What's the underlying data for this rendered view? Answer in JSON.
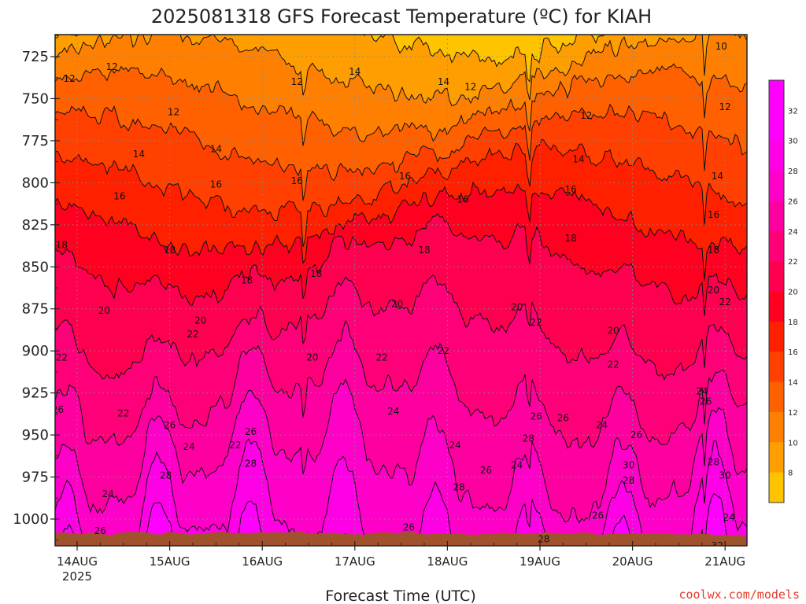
{
  "header": {
    "title": "2025081318 GFS Forecast Temperature (ºC) for KIAH"
  },
  "footer": {
    "xlabel": "Forecast Time (UTC)",
    "credit": "coolwx.com/models",
    "year": "2025"
  },
  "colors": {
    "surface": "#a0522d",
    "credit": "#e8392a",
    "contour_line": "#111111",
    "grid": "#888888"
  },
  "chart_data": {
    "type": "heatmap",
    "title": "2025081318 GFS Forecast Temperature (ºC) for KIAH",
    "xlabel": "Forecast Time (UTC)",
    "ylabel": "",
    "x_ticks": [
      "14AUG",
      "15AUG",
      "16AUG",
      "17AUG",
      "18AUG",
      "19AUG",
      "20AUG",
      "21AUG"
    ],
    "y_ticks": [
      725,
      750,
      775,
      800,
      825,
      850,
      875,
      900,
      925,
      950,
      975,
      1000
    ],
    "y_axis": "pressure (hPa), inverted",
    "grid": true,
    "colorbar": {
      "ticks": [
        8,
        10,
        12,
        14,
        16,
        18,
        20,
        22,
        24,
        26,
        28,
        30,
        32
      ],
      "colors": [
        "#ffc400",
        "#ff9e00",
        "#ff8000",
        "#ff6000",
        "#ff4000",
        "#ff2000",
        "#ff0020",
        "#ff0050",
        "#ff0078",
        "#ff00a0",
        "#ff00c8",
        "#ff00e6",
        "#ff00ff"
      ]
    },
    "contour_labels": [
      {
        "t": "13AUG 22Z",
        "p": 738,
        "v": 12
      },
      {
        "t": "14AUG 09Z",
        "p": 731,
        "v": 12
      },
      {
        "t": "15AUG 01Z",
        "p": 758,
        "v": 12
      },
      {
        "t": "16AUG 09Z",
        "p": 740,
        "v": 12
      },
      {
        "t": "18AUG 06Z",
        "p": 743,
        "v": 12
      },
      {
        "t": "19AUG 12Z",
        "p": 760,
        "v": 12
      },
      {
        "t": "20AUG 23Z",
        "p": 719,
        "v": 10
      },
      {
        "t": "21AUG 00Z",
        "p": 755,
        "v": 12
      },
      {
        "t": "14AUG 16Z",
        "p": 783,
        "v": 14
      },
      {
        "t": "15AUG 12Z",
        "p": 780,
        "v": 14
      },
      {
        "t": "17AUG 00Z",
        "p": 734,
        "v": 14
      },
      {
        "t": "17AUG 23Z",
        "p": 740,
        "v": 14
      },
      {
        "t": "19AUG 10Z",
        "p": 786,
        "v": 14
      },
      {
        "t": "20AUG 22Z",
        "p": 796,
        "v": 14
      },
      {
        "t": "14AUG 11Z",
        "p": 808,
        "v": 16
      },
      {
        "t": "15AUG 12Z",
        "p": 801,
        "v": 16
      },
      {
        "t": "16AUG 09Z",
        "p": 799,
        "v": 16
      },
      {
        "t": "17AUG 13Z",
        "p": 796,
        "v": 16
      },
      {
        "t": "18AUG 04Z",
        "p": 810,
        "v": 16
      },
      {
        "t": "19AUG 08Z",
        "p": 804,
        "v": 16
      },
      {
        "t": "20AUG 21Z",
        "p": 819,
        "v": 16
      },
      {
        "t": "13AUG 20Z",
        "p": 837,
        "v": 18
      },
      {
        "t": "15AUG 00Z",
        "p": 840,
        "v": 18
      },
      {
        "t": "15AUG 20Z",
        "p": 858,
        "v": 18
      },
      {
        "t": "16AUG 14Z",
        "p": 854,
        "v": 18
      },
      {
        "t": "17AUG 18Z",
        "p": 840,
        "v": 18
      },
      {
        "t": "19AUG 08Z",
        "p": 833,
        "v": 18
      },
      {
        "t": "20AUG 21Z",
        "p": 840,
        "v": 18
      },
      {
        "t": "14AUG 07Z",
        "p": 876,
        "v": 20
      },
      {
        "t": "15AUG 08Z",
        "p": 882,
        "v": 20
      },
      {
        "t": "16AUG 13Z",
        "p": 904,
        "v": 20
      },
      {
        "t": "17AUG 11Z",
        "p": 872,
        "v": 20
      },
      {
        "t": "18AUG 18Z",
        "p": 874,
        "v": 20
      },
      {
        "t": "19AUG 19Z",
        "p": 888,
        "v": 20
      },
      {
        "t": "20AUG 21Z",
        "p": 864,
        "v": 20
      },
      {
        "t": "13AUG 20Z",
        "p": 904,
        "v": 22
      },
      {
        "t": "15AUG 06Z",
        "p": 890,
        "v": 22
      },
      {
        "t": "17AUG 07Z",
        "p": 904,
        "v": 22
      },
      {
        "t": "17AUG 23Z",
        "p": 900,
        "v": 22
      },
      {
        "t": "18AUG 23Z",
        "p": 883,
        "v": 22
      },
      {
        "t": "19AUG 19Z",
        "p": 908,
        "v": 22
      },
      {
        "t": "21AUG 00Z",
        "p": 871,
        "v": 22
      },
      {
        "t": "14AUG 12Z",
        "p": 937,
        "v": 22
      },
      {
        "t": "15AUG 17Z",
        "p": 956,
        "v": 22
      },
      {
        "t": "13AUG 19Z",
        "p": 935,
        "v": 26
      },
      {
        "t": "15AUG 00Z",
        "p": 944,
        "v": 26
      },
      {
        "t": "15AUG 05Z",
        "p": 957,
        "v": 24
      },
      {
        "t": "14AUG 08Z",
        "p": 985,
        "v": 24
      },
      {
        "t": "15AUG 21Z",
        "p": 948,
        "v": 26
      },
      {
        "t": "15AUG 21Z",
        "p": 967,
        "v": 28
      },
      {
        "t": "14AUG 23Z",
        "p": 974,
        "v": 28
      },
      {
        "t": "14AUG 06Z",
        "p": 1007,
        "v": 26
      },
      {
        "t": "17AUG 10Z",
        "p": 936,
        "v": 24
      },
      {
        "t": "18AUG 03Z",
        "p": 981,
        "v": 28
      },
      {
        "t": "18AUG 10Z",
        "p": 971,
        "v": 26
      },
      {
        "t": "18AUG 18Z",
        "p": 968,
        "v": 24
      },
      {
        "t": "18AUG 21Z",
        "p": 952,
        "v": 28
      },
      {
        "t": "18AUG 23Z",
        "p": 939,
        "v": 26
      },
      {
        "t": "19AUG 06Z",
        "p": 940,
        "v": 26
      },
      {
        "t": "18AUG 02Z",
        "p": 956,
        "v": 24
      },
      {
        "t": "17AUG 14Z",
        "p": 1005,
        "v": 26
      },
      {
        "t": "19AUG 01Z",
        "p": 1012,
        "v": 28
      },
      {
        "t": "20AUG 18Z",
        "p": 924,
        "v": 24
      },
      {
        "t": "19AUG 16Z",
        "p": 944,
        "v": 24
      },
      {
        "t": "20AUG 01Z",
        "p": 950,
        "v": 26
      },
      {
        "t": "19AUG 23Z",
        "p": 968,
        "v": 30
      },
      {
        "t": "19AUG 23Z",
        "p": 977,
        "v": 28
      },
      {
        "t": "19AUG 15Z",
        "p": 998,
        "v": 26
      },
      {
        "t": "19AUG 23Z",
        "p": 1022,
        "v": 32
      },
      {
        "t": "20AUG 10Z",
        "p": 1033,
        "v": 28
      },
      {
        "t": "20AUG 19Z",
        "p": 930,
        "v": 26
      },
      {
        "t": "20AUG 21Z",
        "p": 966,
        "v": 28
      },
      {
        "t": "20AUG 22Z",
        "p": 1016,
        "v": 32
      },
      {
        "t": "21AUG 00Z",
        "p": 974,
        "v": 30
      },
      {
        "t": "21AUG 01Z",
        "p": 999,
        "v": 24
      }
    ]
  }
}
